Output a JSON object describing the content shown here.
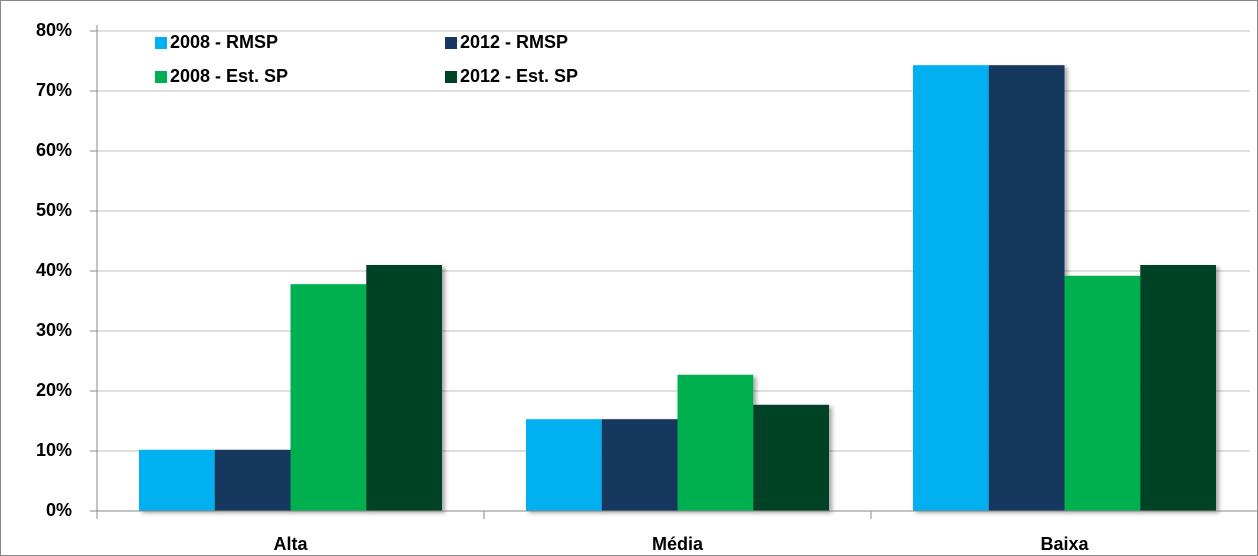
{
  "chart_data": {
    "type": "bar",
    "categories": [
      "Alta",
      "Média",
      "Baixa"
    ],
    "series": [
      {
        "name": "2008 - RMSP",
        "color": "#00b0f0",
        "values": [
          10.2,
          15.3,
          74.3
        ]
      },
      {
        "name": "2012 - RMSP",
        "color": "#17375e",
        "values": [
          10.2,
          15.3,
          74.3
        ]
      },
      {
        "name": "2008 - Est. SP",
        "color": "#00b050",
        "values": [
          37.8,
          22.7,
          39.2
        ]
      },
      {
        "name": "2012 - Est. SP",
        "color": "#004225",
        "values": [
          41.0,
          17.7,
          41.0
        ]
      }
    ],
    "ylim": [
      0,
      80
    ],
    "yticks": [
      {
        "value": 0,
        "label": "0%"
      },
      {
        "value": 10,
        "label": "10%"
      },
      {
        "value": 20,
        "label": "20%"
      },
      {
        "value": 30,
        "label": "30%"
      },
      {
        "value": 40,
        "label": "40%"
      },
      {
        "value": 50,
        "label": "50%"
      },
      {
        "value": 60,
        "label": "60%"
      },
      {
        "value": 70,
        "label": "70%"
      },
      {
        "value": 80,
        "label": "80%"
      }
    ],
    "grid": true,
    "legend": "top-left"
  }
}
